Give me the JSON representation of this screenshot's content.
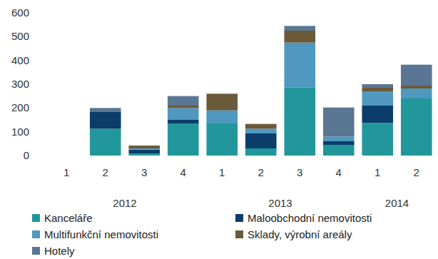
{
  "chart_data": {
    "type": "bar",
    "stacked": true,
    "legend": "bottom",
    "grid": false,
    "categories": [
      "1",
      "2",
      "3",
      "4",
      "1",
      "2",
      "3",
      "4",
      "1",
      "2"
    ],
    "category_groups": [
      {
        "label": "2012",
        "count": 4
      },
      {
        "label": "2013",
        "count": 4
      },
      {
        "label": "2014",
        "count": 2
      }
    ],
    "ylim": [
      0,
      600
    ],
    "yticks": [
      0,
      100,
      200,
      300,
      400,
      500,
      600
    ],
    "series": [
      {
        "name": "Kanceláře",
        "color": "#21979b",
        "values": [
          0,
          113,
          8,
          135,
          135,
          30,
          287,
          45,
          137,
          240
        ]
      },
      {
        "name": "Maloobchodní nemovitosti",
        "color": "#0b3d6b",
        "values": [
          0,
          72,
          17,
          15,
          0,
          63,
          0,
          15,
          73,
          0
        ]
      },
      {
        "name": "Multifunkční nemovitosti",
        "color": "#4f98bf",
        "values": [
          0,
          0,
          5,
          50,
          55,
          20,
          188,
          20,
          60,
          42
        ]
      },
      {
        "name": "Sklady, výrobní areály",
        "color": "#6b5a3a",
        "values": [
          0,
          0,
          12,
          10,
          70,
          20,
          50,
          0,
          15,
          12
        ]
      },
      {
        "name": "Hotely",
        "color": "#5b7692",
        "values": [
          0,
          15,
          0,
          40,
          0,
          0,
          20,
          122,
          15,
          88
        ]
      }
    ]
  }
}
